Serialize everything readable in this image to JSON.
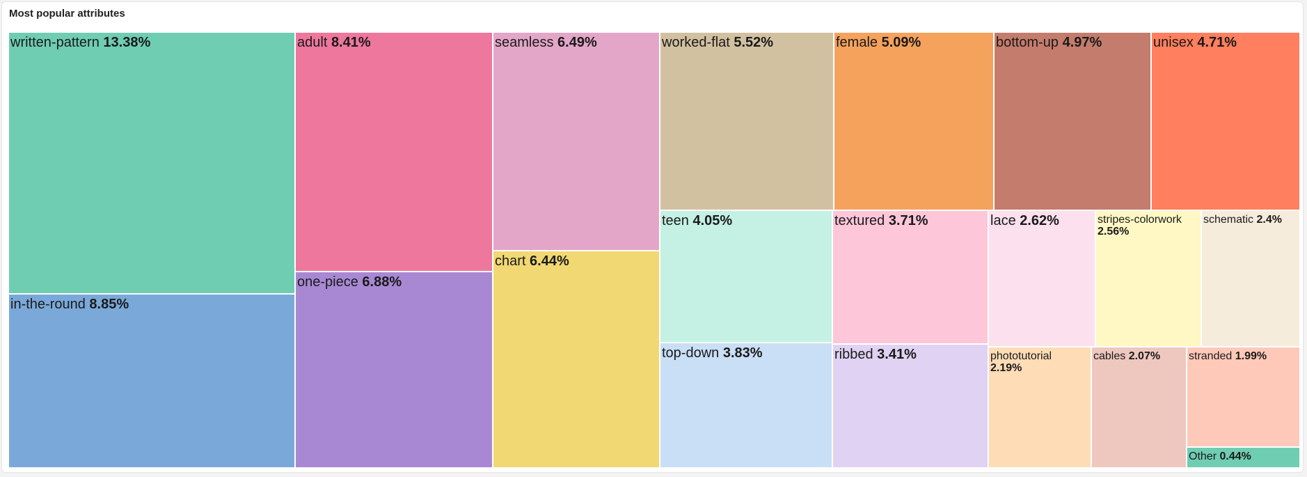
{
  "card": {
    "title": "Most popular attributes"
  },
  "chart_data": {
    "type": "treemap",
    "title": "Most popular attributes",
    "unit": "%",
    "tiles": [
      {
        "name": "written-pattern",
        "value": 13.38,
        "label": "13.38%",
        "color": "#6fcdb2"
      },
      {
        "name": "in-the-round",
        "value": 8.85,
        "label": "8.85%",
        "color": "#7aa9d9"
      },
      {
        "name": "adult",
        "value": 8.41,
        "label": "8.41%",
        "color": "#ee779d"
      },
      {
        "name": "one-piece",
        "value": 6.88,
        "label": "6.88%",
        "color": "#a888d3"
      },
      {
        "name": "seamless",
        "value": 6.49,
        "label": "6.49%",
        "color": "#e3a6c8"
      },
      {
        "name": "chart",
        "value": 6.44,
        "label": "6.44%",
        "color": "#f1d873"
      },
      {
        "name": "worked-flat",
        "value": 5.52,
        "label": "5.52%",
        "color": "#d2c1a0"
      },
      {
        "name": "female",
        "value": 5.09,
        "label": "5.09%",
        "color": "#f5a25d"
      },
      {
        "name": "bottom-up",
        "value": 4.97,
        "label": "4.97%",
        "color": "#c47c6c"
      },
      {
        "name": "unisex",
        "value": 4.71,
        "label": "4.71%",
        "color": "#ff7f5e"
      },
      {
        "name": "teen",
        "value": 4.05,
        "label": "4.05%",
        "color": "#c4f1e3"
      },
      {
        "name": "textured",
        "value": 3.71,
        "label": "3.71%",
        "color": "#fdc6d9"
      },
      {
        "name": "top-down",
        "value": 3.83,
        "label": "3.83%",
        "color": "#c9dff6"
      },
      {
        "name": "ribbed",
        "value": 3.41,
        "label": "3.41%",
        "color": "#e0d2f3"
      },
      {
        "name": "lace",
        "value": 2.62,
        "label": "2.62%",
        "color": "#fde0ee"
      },
      {
        "name": "stripes-colorwork",
        "value": 2.56,
        "label": "2.56%",
        "color": "#fff7c4"
      },
      {
        "name": "schematic",
        "value": 2.4,
        "label": "2.4%",
        "color": "#f6ecdc"
      },
      {
        "name": "phototutorial",
        "value": 2.19,
        "label": "2.19%",
        "color": "#fddcb6"
      },
      {
        "name": "cables",
        "value": 2.07,
        "label": "2.07%",
        "color": "#eec7bf"
      },
      {
        "name": "stranded",
        "value": 1.99,
        "label": "1.99%",
        "color": "#fec9b8"
      },
      {
        "name": "Other",
        "value": 0.44,
        "label": "0.44%",
        "color": "#6fcdb2"
      }
    ]
  }
}
